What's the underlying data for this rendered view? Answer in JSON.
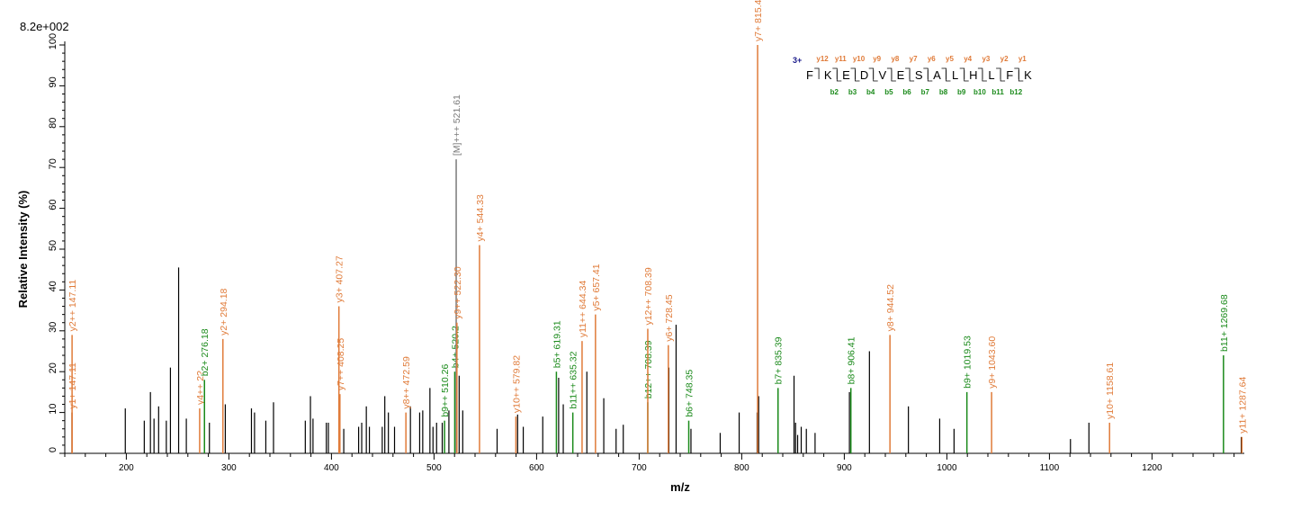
{
  "chart_data": {
    "type": "bar",
    "title": "",
    "intensity_scale": "8.2e+002",
    "xlabel": "m/z",
    "ylabel": "Relative  Intensity (%)",
    "xlim": [
      140,
      1290
    ],
    "ylim": [
      0,
      100
    ],
    "x_ticks": [
      200,
      300,
      400,
      500,
      600,
      700,
      800,
      900,
      1000,
      1100,
      1200
    ],
    "y_ticks": [
      0,
      10,
      20,
      30,
      40,
      50,
      60,
      70,
      80,
      90,
      100
    ],
    "colors": {
      "b_ion": "#1a8a1a",
      "y_ion": "#e07b39",
      "precursor": "#7a7a7a",
      "unassigned": "#000000"
    },
    "unassigned_peaks": [
      {
        "x": 147.0,
        "y": 10
      },
      {
        "x": 199.0,
        "y": 11
      },
      {
        "x": 217.5,
        "y": 8
      },
      {
        "x": 223.5,
        "y": 15
      },
      {
        "x": 227.0,
        "y": 8.5
      },
      {
        "x": 231.5,
        "y": 11.5
      },
      {
        "x": 239.0,
        "y": 8
      },
      {
        "x": 243.0,
        "y": 21
      },
      {
        "x": 251.0,
        "y": 45.5
      },
      {
        "x": 258.5,
        "y": 8.5
      },
      {
        "x": 281.0,
        "y": 7.5
      },
      {
        "x": 296.5,
        "y": 12
      },
      {
        "x": 322.0,
        "y": 11
      },
      {
        "x": 325.0,
        "y": 10
      },
      {
        "x": 336.0,
        "y": 8
      },
      {
        "x": 343.5,
        "y": 12.5
      },
      {
        "x": 374.5,
        "y": 8
      },
      {
        "x": 379.5,
        "y": 14
      },
      {
        "x": 382.0,
        "y": 8.5
      },
      {
        "x": 395.0,
        "y": 7.5
      },
      {
        "x": 397.0,
        "y": 7.5
      },
      {
        "x": 412.0,
        "y": 6
      },
      {
        "x": 426.5,
        "y": 6.5
      },
      {
        "x": 429.5,
        "y": 7.5
      },
      {
        "x": 434.0,
        "y": 11.5
      },
      {
        "x": 437.0,
        "y": 6.5
      },
      {
        "x": 449.5,
        "y": 6.5
      },
      {
        "x": 452.0,
        "y": 14
      },
      {
        "x": 455.5,
        "y": 10
      },
      {
        "x": 461.5,
        "y": 6.5
      },
      {
        "x": 477.0,
        "y": 11.5
      },
      {
        "x": 486.0,
        "y": 10
      },
      {
        "x": 489.0,
        "y": 10.5
      },
      {
        "x": 496.0,
        "y": 16
      },
      {
        "x": 499.0,
        "y": 6.5
      },
      {
        "x": 502.5,
        "y": 7.5
      },
      {
        "x": 508.0,
        "y": 7.5
      },
      {
        "x": 514.5,
        "y": 10.5
      },
      {
        "x": 524.5,
        "y": 19
      },
      {
        "x": 528.0,
        "y": 10.5
      },
      {
        "x": 561.5,
        "y": 6
      },
      {
        "x": 581.5,
        "y": 9.5
      },
      {
        "x": 587.0,
        "y": 6.5
      },
      {
        "x": 606.0,
        "y": 9
      },
      {
        "x": 621.5,
        "y": 18.5
      },
      {
        "x": 626.0,
        "y": 12
      },
      {
        "x": 649.0,
        "y": 20
      },
      {
        "x": 665.5,
        "y": 13.5
      },
      {
        "x": 677.5,
        "y": 6
      },
      {
        "x": 684.5,
        "y": 7
      },
      {
        "x": 729.0,
        "y": 21
      },
      {
        "x": 736.0,
        "y": 31.5
      },
      {
        "x": 750.5,
        "y": 6
      },
      {
        "x": 779.0,
        "y": 5
      },
      {
        "x": 797.5,
        "y": 10
      },
      {
        "x": 815.0,
        "y": 10
      },
      {
        "x": 816.5,
        "y": 14
      },
      {
        "x": 851.0,
        "y": 19
      },
      {
        "x": 852.5,
        "y": 7.5
      },
      {
        "x": 854.5,
        "y": 4.5
      },
      {
        "x": 858.0,
        "y": 6.5
      },
      {
        "x": 863.0,
        "y": 6
      },
      {
        "x": 871.5,
        "y": 5
      },
      {
        "x": 905.0,
        "y": 15
      },
      {
        "x": 924.5,
        "y": 25
      },
      {
        "x": 962.5,
        "y": 11.5
      },
      {
        "x": 993.0,
        "y": 8.5
      },
      {
        "x": 1007.0,
        "y": 6
      },
      {
        "x": 1120.5,
        "y": 3.5
      },
      {
        "x": 1138.5,
        "y": 7.5
      },
      {
        "x": 1287.0,
        "y": 4
      }
    ],
    "annotated_peaks": [
      {
        "x": 147.11,
        "y": 10,
        "label": "y1+ 147.11",
        "ion": "y"
      },
      {
        "x": 147.11,
        "y": 29,
        "label": "y2++ 147.11",
        "ion": "y"
      },
      {
        "x": 271.5,
        "y": 11,
        "label": "y4++ 2?",
        "ion": "y"
      },
      {
        "x": 276.18,
        "y": 18,
        "label": "b2+ 276.18",
        "ion": "b"
      },
      {
        "x": 294.18,
        "y": 28,
        "label": "y2+ 294.18",
        "ion": "y"
      },
      {
        "x": 407.27,
        "y": 36,
        "label": "y3+ 407.27",
        "ion": "y"
      },
      {
        "x": 408.25,
        "y": 14.5,
        "label": "y7++ 408.25",
        "ion": "y"
      },
      {
        "x": 472.59,
        "y": 10,
        "label": "y8++ 472.59",
        "ion": "y"
      },
      {
        "x": 510.26,
        "y": 8,
        "label": "b9++ 510.26",
        "ion": "b"
      },
      {
        "x": 520.2,
        "y": 20,
        "label": "b4+ 520.2",
        "ion": "b"
      },
      {
        "x": 521.61,
        "y": 72,
        "label": "[M]+++ 521.61",
        "ion": "precursor"
      },
      {
        "x": 522.3,
        "y": 32,
        "label": "y9++ 522.30",
        "ion": "y"
      },
      {
        "x": 544.33,
        "y": 51,
        "label": "y4+ 544.33",
        "ion": "y"
      },
      {
        "x": 579.82,
        "y": 9,
        "label": "y10++ 579.82",
        "ion": "y"
      },
      {
        "x": 619.31,
        "y": 20,
        "label": "b5+ 619.31",
        "ion": "b"
      },
      {
        "x": 635.32,
        "y": 10,
        "label": "b11++ 635.32",
        "ion": "b"
      },
      {
        "x": 644.34,
        "y": 27.5,
        "label": "y11++ 644.34",
        "ion": "y"
      },
      {
        "x": 657.41,
        "y": 34,
        "label": "y5+ 657.41",
        "ion": "y"
      },
      {
        "x": 708.39,
        "y": 12.5,
        "label": "b12++ 708.39",
        "ion": "b"
      },
      {
        "x": 708.39,
        "y": 30.5,
        "label": "y12++ 708.39",
        "ion": "y"
      },
      {
        "x": 728.45,
        "y": 26.5,
        "label": "y6+ 728.45",
        "ion": "y"
      },
      {
        "x": 748.35,
        "y": 8,
        "label": "b6+ 748.35",
        "ion": "b"
      },
      {
        "x": 815.48,
        "y": 100,
        "label": "y7+ 815.48",
        "ion": "y"
      },
      {
        "x": 835.39,
        "y": 16,
        "label": "b7+ 835.39",
        "ion": "b"
      },
      {
        "x": 906.41,
        "y": 16,
        "label": "b8+ 906.41",
        "ion": "b"
      },
      {
        "x": 944.52,
        "y": 29,
        "label": "y8+ 944.52",
        "ion": "y"
      },
      {
        "x": 1019.53,
        "y": 15,
        "label": "b9+ 1019.53",
        "ion": "b"
      },
      {
        "x": 1043.6,
        "y": 15,
        "label": "y9+ 1043.60",
        "ion": "y"
      },
      {
        "x": 1158.61,
        "y": 7.5,
        "label": "y10+ 1158.61",
        "ion": "y"
      },
      {
        "x": 1269.68,
        "y": 24,
        "label": "b11+ 1269.68",
        "ion": "b"
      },
      {
        "x": 1287.64,
        "y": 4,
        "label": "y11+ 1287.64",
        "ion": "y"
      }
    ],
    "sequence_map": {
      "charge": "3+",
      "residues": [
        "F",
        "K",
        "E",
        "D",
        "V",
        "E",
        "S",
        "A",
        "L",
        "H",
        "L",
        "F",
        "K"
      ],
      "y_labels": [
        "y12",
        "y11",
        "y10",
        "y9",
        "y8",
        "y7",
        "y6",
        "y5",
        "y4",
        "y3",
        "y2",
        "y1"
      ],
      "b_labels": [
        "b2",
        "b3",
        "b4",
        "b5",
        "b6",
        "b7",
        "b8",
        "b9",
        "b10",
        "b11",
        "b12"
      ]
    }
  }
}
